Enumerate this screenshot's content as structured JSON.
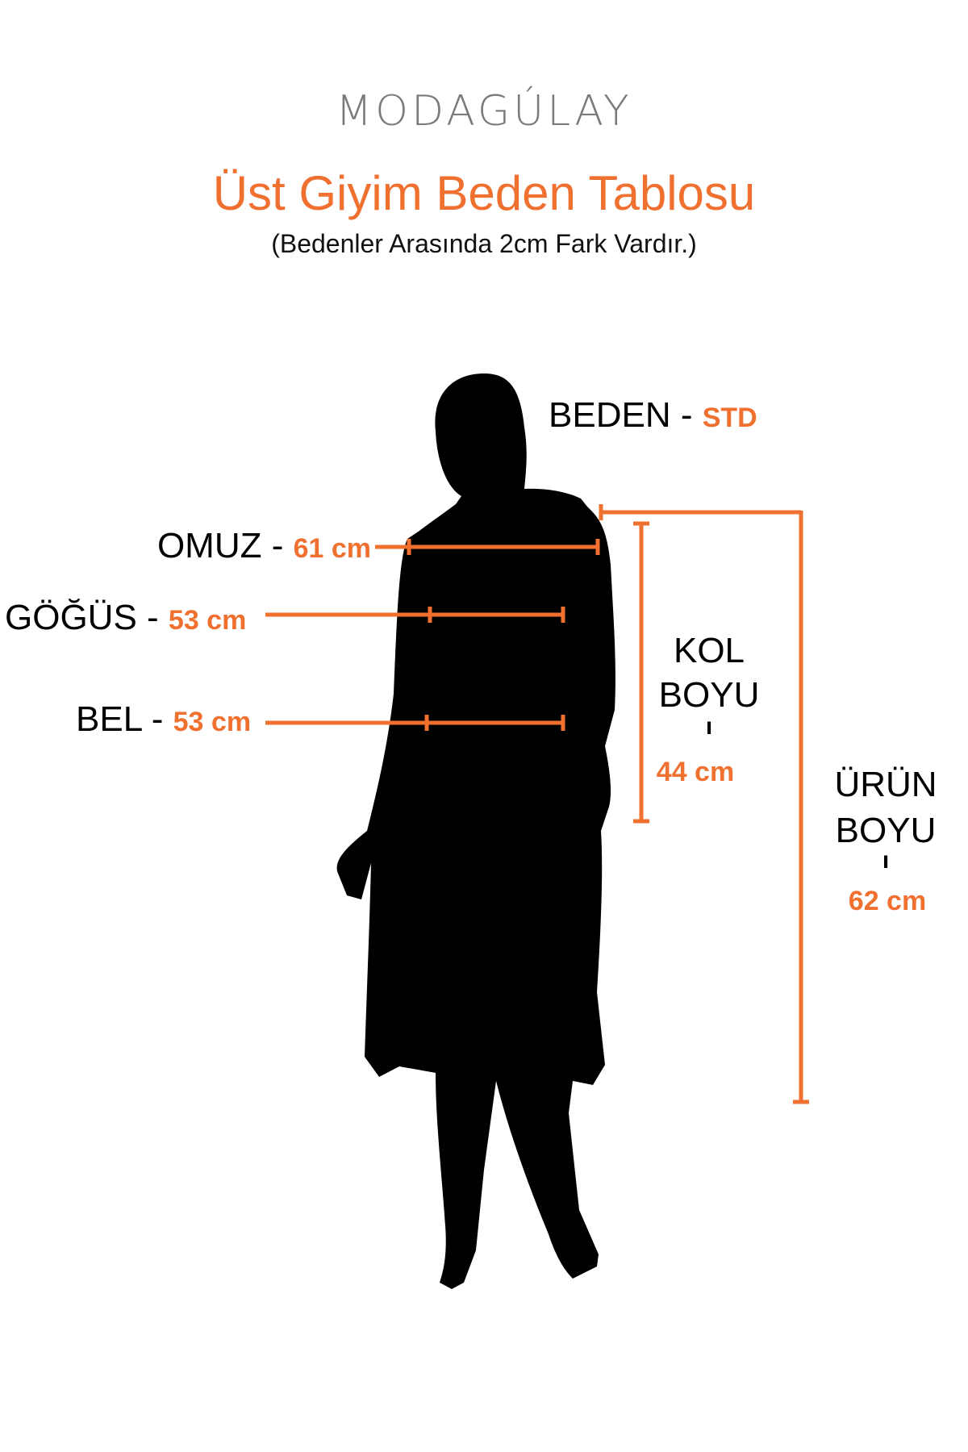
{
  "brand": {
    "logo": "MODAGÚLAY"
  },
  "header": {
    "title": "Üst Giyim Beden Tablosu",
    "subtitle": "(Bedenler Arasında 2cm Fark Vardır.)"
  },
  "colors": {
    "accent": "#f07030",
    "silhouette": "#000000",
    "logo": "#7a7a7a"
  },
  "measurements": {
    "size": {
      "label": "BEDEN - ",
      "value": "STD"
    },
    "shoulder": {
      "label": "OMUZ - ",
      "value": "61 cm"
    },
    "chest": {
      "label": "GÖĞÜS - ",
      "value": "53 cm"
    },
    "waist": {
      "label": "BEL - ",
      "value": "53 cm"
    },
    "sleeve": {
      "label1": "KOL",
      "label2": "BOYU",
      "sep": "ı",
      "value": "44 cm"
    },
    "length": {
      "label1": "ÜRÜN",
      "label2": "BOYU",
      "sep": "ı",
      "value": "62 cm"
    }
  }
}
